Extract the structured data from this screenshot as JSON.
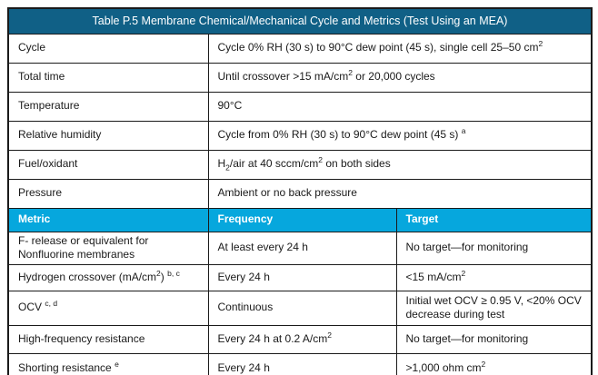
{
  "table": {
    "title": "Table P.5 Membrane Chemical/Mechanical Cycle and Metrics (Test Using an MEA)",
    "info_rows": [
      {
        "label": "Cycle",
        "value": "Cycle 0% RH (30 s) to 90°C dew point (45 s), single cell 25–50 cm^{2}"
      },
      {
        "label": "Total time",
        "value": "Until crossover >15 mA/cm^{2} or 20,000 cycles"
      },
      {
        "label": "Temperature",
        "value": "90°C"
      },
      {
        "label": "Relative humidity",
        "value": "Cycle from 0% RH (30 s) to 90°C dew point (45 s) ^{a}"
      },
      {
        "label": "Fuel/oxidant",
        "value": "H_{2}/air at 40 sccm/cm^{2} on both sides"
      },
      {
        "label": "Pressure",
        "value": "Ambient or no back pressure"
      }
    ],
    "metric_header": {
      "metric": "Metric",
      "frequency": "Frequency",
      "target": "Target"
    },
    "metric_rows": [
      {
        "metric": "F- release or equivalent for Nonfluorine membranes",
        "frequency": "At least every 24 h",
        "target": "No target—for monitoring"
      },
      {
        "metric": "Hydrogen crossover (mA/cm^{2}) ^{b, c}",
        "frequency": "Every 24 h",
        "target": "<15 mA/cm^{2}"
      },
      {
        "metric": "OCV ^{c, d}",
        "frequency": "Continuous",
        "target": "Initial wet OCV ≥ 0.95 V, <20% OCV decrease during test"
      },
      {
        "metric": "High-frequency resistance",
        "frequency": "Every 24 h at 0.2 A/cm^{2}",
        "target": "No target—for monitoring"
      },
      {
        "metric": "Shorting resistance ^{e}",
        "frequency": "Every 24 h",
        "target": ">1,000 ohm cm^{2}"
      }
    ],
    "colors": {
      "title_bg": "#106086",
      "metric_header_bg": "#06a7dd",
      "border": "#1a1a1a",
      "text": "#1a1a1a",
      "header_text": "#ffffff"
    }
  }
}
